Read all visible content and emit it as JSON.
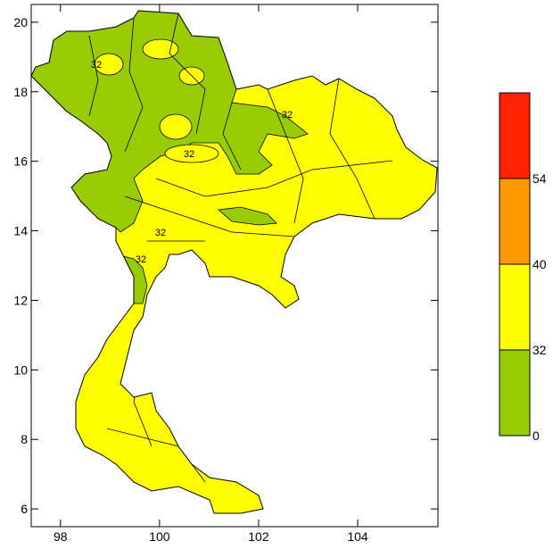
{
  "map": {
    "xlim": [
      97.41,
      105.62
    ],
    "ylim": [
      5.49,
      20.51
    ],
    "xticks": [
      98,
      100,
      102,
      104
    ],
    "yticks": [
      6,
      8,
      10,
      12,
      14,
      16,
      18,
      20
    ],
    "contour_labels": [
      32,
      32,
      32,
      32,
      32
    ],
    "colorbar": {
      "levels": [
        0,
        32,
        40,
        54
      ],
      "colors": [
        "#99cc00",
        "#ffff00",
        "#ff9900",
        "#ff2200"
      ]
    }
  }
}
